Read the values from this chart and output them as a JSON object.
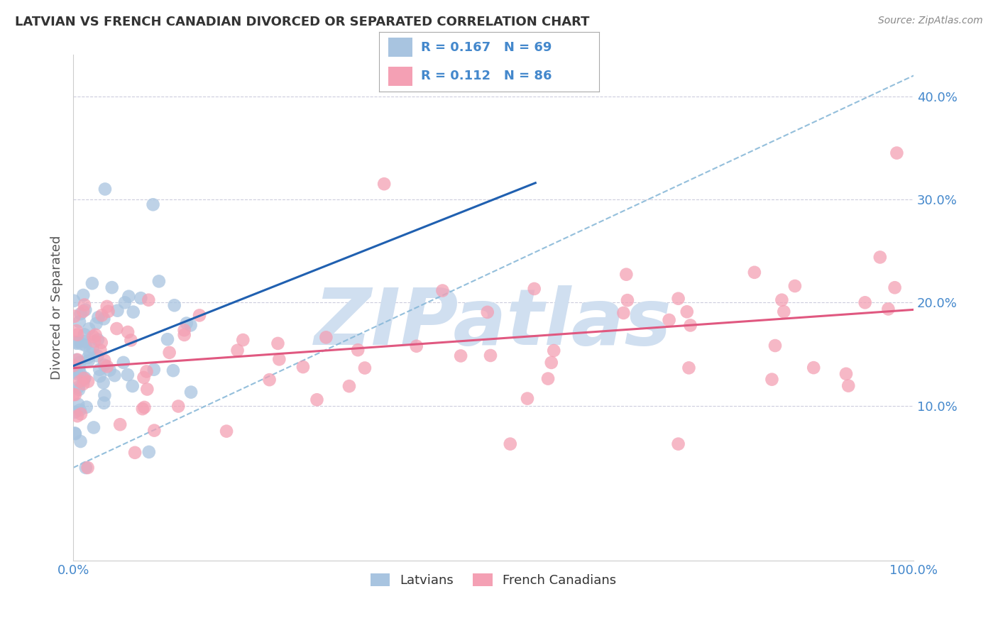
{
  "title": "LATVIAN VS FRENCH CANADIAN DIVORCED OR SEPARATED CORRELATION CHART",
  "source": "Source: ZipAtlas.com",
  "ylabel": "Divorced or Separated",
  "xlim": [
    0.0,
    1.0
  ],
  "ylim": [
    -0.05,
    0.44
  ],
  "yticks": [
    0.1,
    0.2,
    0.3,
    0.4
  ],
  "xticks": [
    0.0,
    1.0
  ],
  "xtick_labels": [
    "0.0%",
    "100.0%"
  ],
  "latvian_R": 0.167,
  "latvian_N": 69,
  "french_R": 0.112,
  "french_N": 86,
  "latvian_color": "#a8c4e0",
  "french_color": "#f4a0b4",
  "latvian_line_color": "#2060b0",
  "french_line_color": "#e05880",
  "diag_line_color": "#88b8d8",
  "background_color": "#ffffff",
  "grid_color": "#ccccdd",
  "watermark_text": "ZIPatlas",
  "watermark_color": "#d0dff0",
  "title_color": "#333333",
  "source_color": "#888888",
  "tick_color": "#4488cc",
  "ylabel_color": "#555555"
}
